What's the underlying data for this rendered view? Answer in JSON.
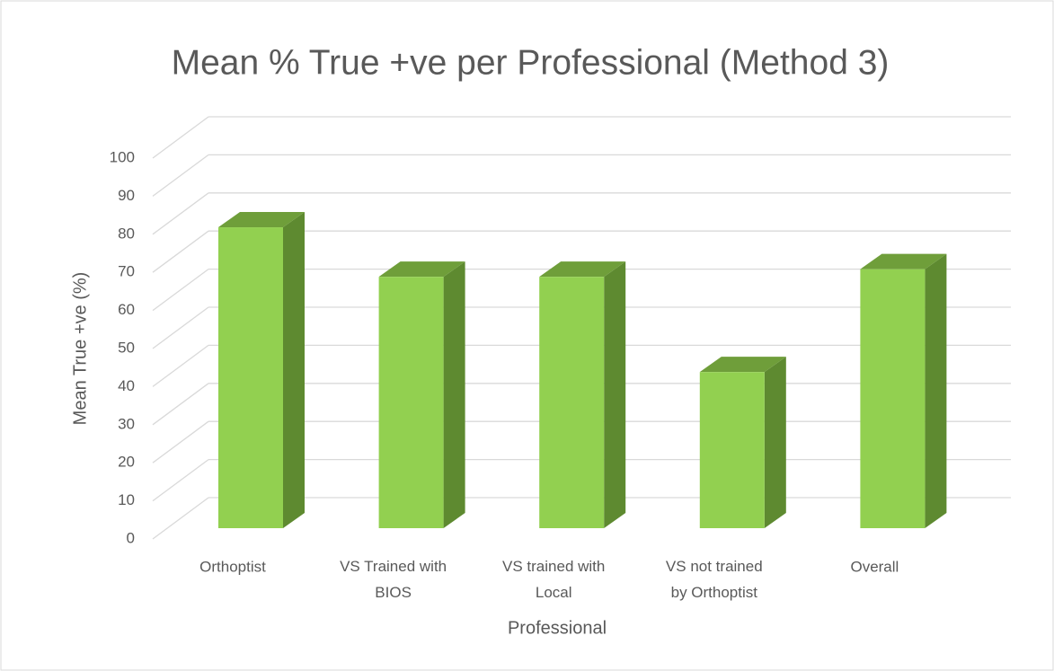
{
  "chart_data": {
    "type": "bar3d",
    "title": "Mean % True +ve per Professional (Method 3)",
    "x_label": "Professional",
    "y_label": "Mean True +ve (%)",
    "categories": [
      "Orthoptist",
      "VS Trained with BIOS",
      "VS trained with Local",
      "VS not trained by Orthoptist",
      "Overall"
    ],
    "values": [
      79,
      66,
      66,
      41,
      68
    ],
    "color": "#92d050",
    "ylim": [
      0,
      100
    ],
    "yticks": [
      0,
      10,
      20,
      30,
      40,
      50,
      60,
      70,
      80,
      90,
      100
    ],
    "grid": true
  }
}
